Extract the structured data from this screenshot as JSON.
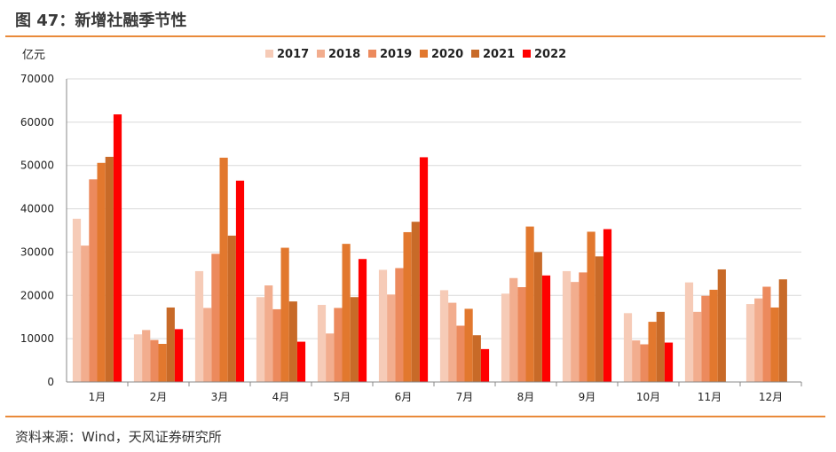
{
  "figure": {
    "title": "图 47：新增社融季节性",
    "source": "资料来源：Wind，天风证券研究所"
  },
  "chart_data": {
    "type": "bar",
    "ylabel": "亿元",
    "ylim": [
      0,
      70000
    ],
    "yticks": [
      "0",
      "10000",
      "20000",
      "30000",
      "40000",
      "50000",
      "60000",
      "70000"
    ],
    "grid": true,
    "legend_position": "top",
    "categories": [
      "1月",
      "2月",
      "3月",
      "4月",
      "5月",
      "6月",
      "7月",
      "8月",
      "9月",
      "10月",
      "11月",
      "12月"
    ],
    "series": [
      {
        "name": "2017",
        "color": "#f6cbb7",
        "values": [
          37700,
          11000,
          25600,
          19600,
          17800,
          25900,
          21200,
          20400,
          25600,
          15900,
          23000,
          18000
        ]
      },
      {
        "name": "2018",
        "color": "#f2ad8e",
        "values": [
          31500,
          12000,
          17100,
          22300,
          11200,
          20200,
          18300,
          24000,
          23100,
          9600,
          16200,
          19300
        ]
      },
      {
        "name": "2019",
        "color": "#ec8a5d",
        "values": [
          46800,
          9700,
          29600,
          16800,
          17100,
          26300,
          13000,
          21900,
          25300,
          8700,
          19900,
          22000
        ]
      },
      {
        "name": "2020",
        "color": "#e2782e",
        "values": [
          50600,
          8800,
          51800,
          31000,
          31900,
          34600,
          16900,
          35900,
          34700,
          13900,
          21300,
          17200
        ]
      },
      {
        "name": "2021",
        "color": "#c86a28",
        "values": [
          52000,
          17200,
          33800,
          18600,
          19600,
          37000,
          10800,
          30000,
          29000,
          16200,
          26000,
          23700
        ]
      },
      {
        "name": "2022",
        "color": "#ff0000",
        "values": [
          61800,
          12200,
          46500,
          9300,
          28400,
          51900,
          7600,
          24600,
          35300,
          9100,
          null,
          null
        ]
      }
    ]
  }
}
